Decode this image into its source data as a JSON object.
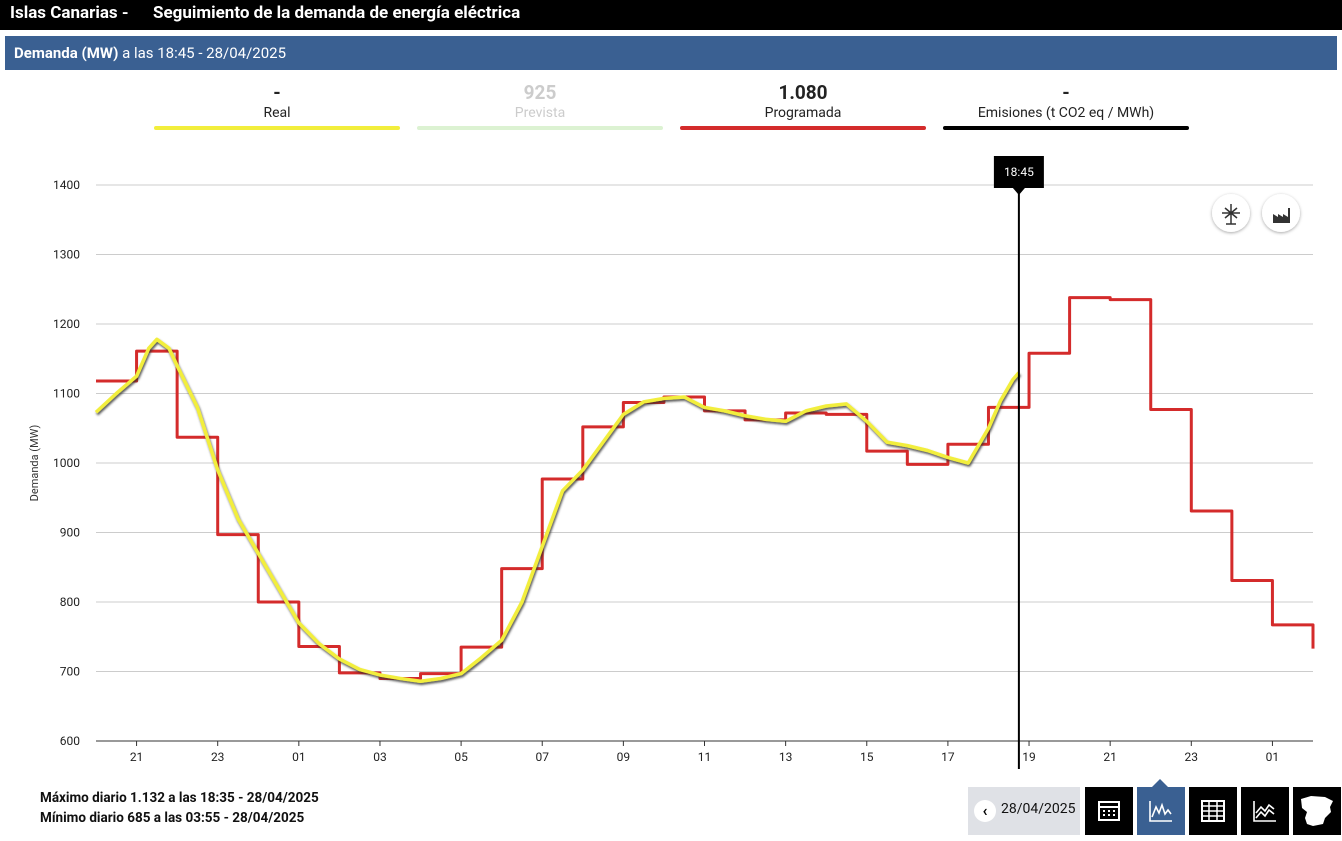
{
  "header": {
    "region": "Islas Canarias  -",
    "title": "Seguimiento de la demanda de energía eléctrica"
  },
  "subheader": {
    "label": "Demanda (MW)",
    "text": "a las 18:45 - 28/04/2025"
  },
  "chart_data": {
    "type": "line",
    "y_label": "Demanda (MW)",
    "legend": [
      {
        "value": "-",
        "name": "Real",
        "color": "#f2ee3c"
      },
      {
        "value": "925",
        "name": "Prevista",
        "color": "#dcf2d2"
      },
      {
        "value": "1.080",
        "name": "Programada",
        "color": "#d42b2b"
      },
      {
        "value": "-",
        "name": "Emisiones (t CO2 eq / MWh)",
        "color": "#000000"
      }
    ],
    "xlim": [
      20,
      50
    ],
    "xticks": [
      21,
      23,
      {
        "value": 25,
        "label": "01"
      },
      {
        "value": 27,
        "label": "03"
      },
      {
        "value": 29,
        "label": "05"
      },
      {
        "value": 31,
        "label": "07"
      },
      {
        "value": 33,
        "label": "09"
      },
      {
        "value": 35,
        "label": "11"
      },
      {
        "value": 37,
        "label": "13"
      },
      {
        "value": 39,
        "label": "15"
      },
      {
        "value": 41,
        "label": "17"
      },
      {
        "value": 43,
        "label": "19"
      },
      {
        "value": 45,
        "label": "21"
      },
      {
        "value": 47,
        "label": "23"
      },
      {
        "value": 49,
        "label": "01"
      }
    ],
    "ylim": [
      600,
      1400
    ],
    "yticks": [
      600,
      700,
      800,
      900,
      1000,
      1100,
      1200,
      1300,
      1400
    ],
    "grid": true,
    "series": [
      {
        "color": "#d42b2b",
        "step": true,
        "x": [
          20,
          21,
          22,
          23,
          24,
          25,
          26,
          27,
          28,
          29,
          30,
          31,
          32,
          33,
          34,
          35,
          36,
          37,
          38,
          39,
          40,
          41,
          42,
          43,
          44,
          45,
          46,
          47,
          48,
          49,
          50
        ],
        "values": [
          1118,
          1161,
          1037,
          897,
          800,
          736,
          698,
          690,
          697,
          735,
          848,
          977,
          1052,
          1087,
          1095,
          1075,
          1062,
          1072,
          1070,
          1017,
          998,
          1027,
          1080,
          1158,
          1238,
          1235,
          1077,
          931,
          831,
          767,
          733
        ]
      },
      {
        "color": "#f2ee3c",
        "step": false,
        "x": [
          20,
          20.5,
          21,
          21.3,
          21.5,
          21.8,
          22,
          22.5,
          23,
          23.5,
          24,
          24.5,
          25,
          25.5,
          26,
          26.5,
          27,
          27.5,
          28,
          28.5,
          29,
          29.5,
          30,
          30.5,
          31,
          31.5,
          32,
          32.5,
          33,
          33.5,
          34,
          34.5,
          35,
          35.5,
          36,
          36.5,
          37,
          37.5,
          38,
          38.5,
          39,
          39.5,
          40,
          40.5,
          41,
          41.5,
          42,
          42.3,
          42.6,
          42.75
        ],
        "values": [
          1073,
          1100,
          1125,
          1165,
          1178,
          1165,
          1140,
          1080,
          990,
          920,
          870,
          820,
          770,
          740,
          718,
          703,
          695,
          690,
          686,
          690,
          697,
          720,
          745,
          800,
          880,
          960,
          990,
          1030,
          1070,
          1088,
          1093,
          1095,
          1080,
          1075,
          1068,
          1063,
          1060,
          1075,
          1082,
          1085,
          1060,
          1030,
          1025,
          1018,
          1008,
          1000,
          1050,
          1090,
          1120,
          1130
        ]
      }
    ],
    "marker": {
      "x": 42.75,
      "label": "18:45"
    }
  },
  "footer": {
    "max": "Máximo diario 1.132 a las 18:35 - 28/04/2025",
    "min": "Mínimo diario 685 a las 03:55 - 28/04/2025"
  },
  "controls": {
    "date": "28/04/2025"
  }
}
